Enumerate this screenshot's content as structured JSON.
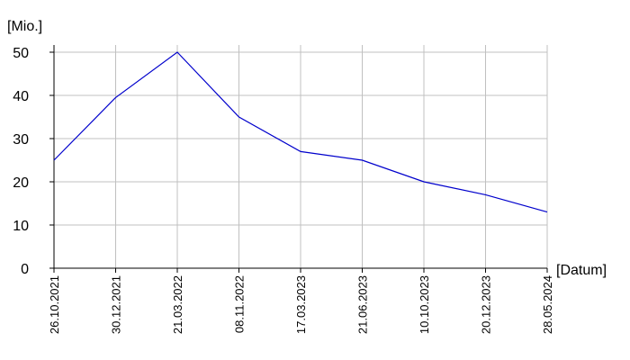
{
  "chart_data": {
    "type": "line",
    "y_label": "[Mio.]",
    "x_label": "[Datum]",
    "categories": [
      "26.10.2021",
      "30.12.2021",
      "21.03.2022",
      "08.11.2022",
      "17.03.2023",
      "21.06.2023",
      "10.10.2023",
      "20.12.2023",
      "28.05.2024"
    ],
    "values": [
      25,
      39.5,
      50,
      35,
      27,
      25,
      20,
      17,
      13
    ],
    "color": "#0000cc",
    "ylim": [
      0,
      50
    ],
    "yticks": [
      0,
      10,
      20,
      30,
      40,
      50
    ],
    "grid": true
  }
}
